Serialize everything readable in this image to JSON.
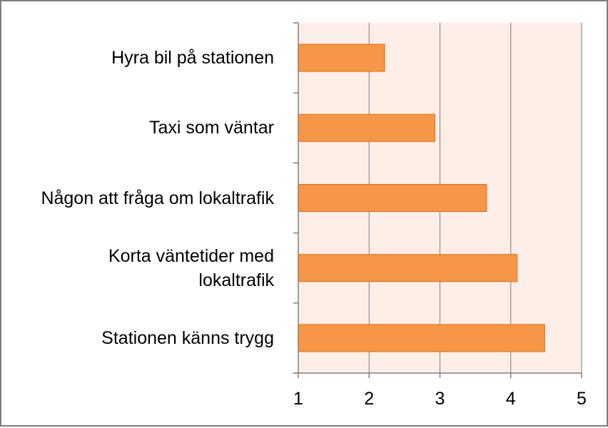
{
  "chart_data": {
    "type": "bar",
    "orientation": "horizontal",
    "title": "",
    "xlabel": "",
    "ylabel": "",
    "categories": [
      "Hyra bil på stationen",
      "Taxi som väntar",
      "Någon att fråga om lokaltrafik",
      "Korta väntetider med\nlokaltrafik",
      "Stationen känns trygg"
    ],
    "values": [
      2.22,
      2.93,
      3.66,
      4.09,
      4.48
    ],
    "xlim": [
      1,
      5
    ],
    "xticks": [
      "1",
      "2",
      "3",
      "4",
      "5"
    ],
    "grid": "vertical",
    "legend": "none",
    "colors": {
      "bar_fill": "#f79646",
      "bar_stroke": "#e46c0a",
      "plot_background": "#fdeee8",
      "gridline": "#7f7f7f",
      "axis": "#808080",
      "frame": "#7f7f7f"
    }
  }
}
